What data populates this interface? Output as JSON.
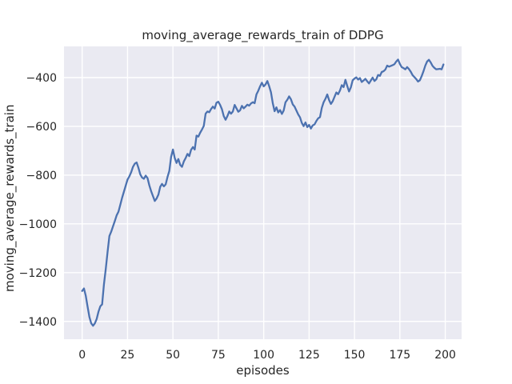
{
  "figure": {
    "title": "moving_average_rewards_train of DDPG",
    "xlabel": "episodes",
    "ylabel": "moving_average_rewards_train",
    "colors": {
      "figure_bg": "#ffffff",
      "axes_bg": "#eaeaf2",
      "grid": "#ffffff",
      "line": "#4c72b0",
      "text": "#262626"
    }
  },
  "chart_data": {
    "type": "line",
    "title": "moving_average_rewards_train of DDPG",
    "xlabel": "episodes",
    "ylabel": "moving_average_rewards_train",
    "xlim": [
      -10,
      209
    ],
    "ylim": [
      -1473,
      -272
    ],
    "xticks": [
      0,
      25,
      50,
      75,
      100,
      125,
      150,
      175,
      200
    ],
    "xtick_labels": [
      "0",
      "25",
      "50",
      "75",
      "100",
      "125",
      "150",
      "175",
      "200"
    ],
    "yticks": [
      -400,
      -600,
      -800,
      -1000,
      -1200,
      -1400
    ],
    "ytick_labels": [
      "−400",
      "−600",
      "−800",
      "−1000",
      "−1200",
      "−1400"
    ],
    "grid": true,
    "legend": false,
    "series": [
      {
        "name": "moving_average_rewards_train",
        "color": "#4c72b0",
        "x_start": 0,
        "x_step": 1,
        "values": [
          -1275,
          -1265,
          -1295,
          -1340,
          -1382,
          -1408,
          -1418,
          -1408,
          -1390,
          -1360,
          -1338,
          -1330,
          -1248,
          -1185,
          -1115,
          -1050,
          -1032,
          -1010,
          -988,
          -965,
          -950,
          -922,
          -893,
          -868,
          -843,
          -818,
          -805,
          -788,
          -766,
          -753,
          -748,
          -770,
          -797,
          -810,
          -815,
          -802,
          -812,
          -842,
          -866,
          -886,
          -906,
          -896,
          -880,
          -848,
          -836,
          -846,
          -838,
          -808,
          -783,
          -725,
          -695,
          -730,
          -750,
          -734,
          -758,
          -766,
          -744,
          -730,
          -713,
          -722,
          -696,
          -685,
          -695,
          -638,
          -642,
          -626,
          -613,
          -598,
          -548,
          -539,
          -542,
          -529,
          -519,
          -527,
          -503,
          -499,
          -512,
          -530,
          -558,
          -573,
          -558,
          -539,
          -548,
          -539,
          -512,
          -526,
          -540,
          -534,
          -516,
          -526,
          -519,
          -511,
          -515,
          -506,
          -501,
          -505,
          -469,
          -454,
          -436,
          -421,
          -436,
          -428,
          -414,
          -435,
          -460,
          -505,
          -538,
          -522,
          -543,
          -533,
          -549,
          -535,
          -501,
          -491,
          -477,
          -489,
          -510,
          -519,
          -535,
          -551,
          -563,
          -586,
          -599,
          -584,
          -603,
          -594,
          -609,
          -596,
          -592,
          -578,
          -567,
          -562,
          -524,
          -501,
          -487,
          -469,
          -492,
          -508,
          -497,
          -479,
          -461,
          -468,
          -453,
          -431,
          -439,
          -409,
          -434,
          -457,
          -440,
          -411,
          -404,
          -399,
          -408,
          -402,
          -418,
          -412,
          -405,
          -415,
          -424,
          -412,
          -400,
          -414,
          -407,
          -389,
          -393,
          -377,
          -374,
          -367,
          -351,
          -355,
          -352,
          -349,
          -345,
          -334,
          -326,
          -344,
          -357,
          -361,
          -366,
          -357,
          -365,
          -376,
          -390,
          -398,
          -406,
          -416,
          -411,
          -394,
          -374,
          -351,
          -334,
          -327,
          -338,
          -352,
          -360,
          -366,
          -365,
          -364,
          -366,
          -346
        ]
      }
    ]
  }
}
